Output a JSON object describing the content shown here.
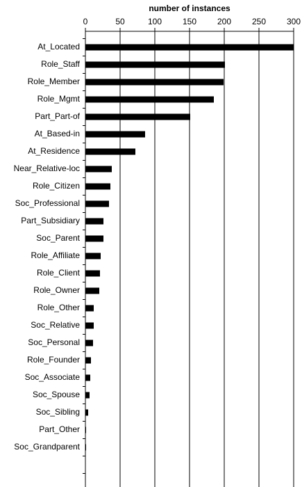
{
  "chart_data": {
    "type": "bar",
    "orientation": "horizontal",
    "xlabel": "number of instances",
    "xlim": [
      0,
      300
    ],
    "xticks": [
      0,
      50,
      100,
      150,
      200,
      250,
      300
    ],
    "grid": true,
    "bar_color": "#000000",
    "categories": [
      "At_Located",
      "Role_Staff",
      "Role_Member",
      "Role_Mgmt",
      "Part_Part-of",
      "At_Based-in",
      "At_Residence",
      "Near_Relative-loc",
      "Role_Citizen",
      "Soc_Professional",
      "Part_Subsidiary",
      "Soc_Parent",
      "Role_Affiliate",
      "Role_Client",
      "Role_Owner",
      "Role_Other",
      "Soc_Relative",
      "Soc_Personal",
      "Role_Founder",
      "Soc_Associate",
      "Soc_Spouse",
      "Soc_Sibling",
      "Part_Other",
      "Soc_Grandparent"
    ],
    "values": [
      300,
      201,
      199,
      185,
      151,
      86,
      72,
      38,
      36,
      34,
      26,
      26,
      22,
      21,
      20,
      12,
      12,
      11,
      8,
      7,
      6,
      4,
      1,
      1
    ]
  }
}
